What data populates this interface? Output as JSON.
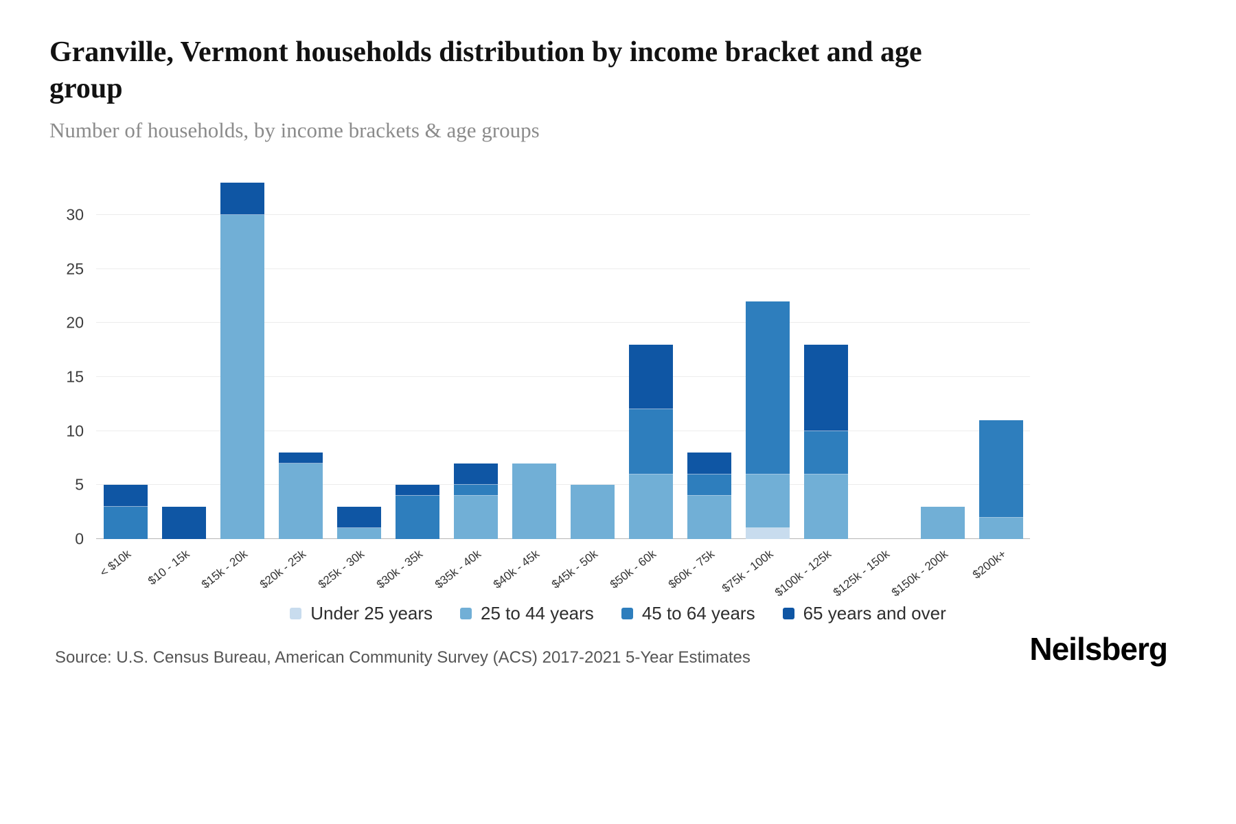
{
  "header": {
    "title": "Granville, Vermont households distribution by income bracket and age group",
    "subtitle": "Number of households, by income brackets & age groups"
  },
  "footer": {
    "source": "Source: U.S. Census Bureau, American Community Survey (ACS) 2017-2021 5-Year Estimates",
    "brand": "Neilsberg"
  },
  "chart_data": {
    "type": "bar",
    "stacked": true,
    "title": "Granville, Vermont households distribution by income bracket and age group",
    "subtitle": "Number of households, by income brackets & age groups",
    "xlabel": "",
    "ylabel": "",
    "categories": [
      "< $10k",
      "$10 - 15k",
      "$15k - 20k",
      "$20k - 25k",
      "$25k - 30k",
      "$30k - 35k",
      "$35k - 40k",
      "$40k - 45k",
      "$45k - 50k",
      "$50k - 60k",
      "$60k - 75k",
      "$75k - 100k",
      "$100k - 125k",
      "$125k - 150k",
      "$150k - 200k",
      "$200k+"
    ],
    "series": [
      {
        "name": "Under 25 years",
        "color": "#c8dcee",
        "values": [
          0,
          0,
          0,
          0,
          0,
          0,
          0,
          0,
          0,
          0,
          0,
          1,
          0,
          0,
          0,
          0
        ]
      },
      {
        "name": "25 to 44 years",
        "color": "#71afd6",
        "values": [
          0,
          0,
          30,
          7,
          1,
          0,
          4,
          7,
          5,
          6,
          4,
          5,
          6,
          0,
          3,
          2
        ]
      },
      {
        "name": "45 to 64 years",
        "color": "#2e7ebd",
        "values": [
          3,
          0,
          0,
          0,
          0,
          4,
          1,
          0,
          0,
          6,
          2,
          16,
          4,
          0,
          0,
          9
        ]
      },
      {
        "name": "65 years and over",
        "color": "#0f56a4",
        "values": [
          2,
          3,
          3,
          1,
          2,
          1,
          2,
          0,
          0,
          6,
          2,
          0,
          8,
          0,
          0,
          0
        ]
      }
    ],
    "totals": [
      5,
      3,
      33,
      8,
      3,
      5,
      7,
      7,
      5,
      18,
      8,
      22,
      18,
      0,
      3,
      11
    ],
    "yticks": [
      0,
      5,
      10,
      15,
      20,
      25,
      30
    ],
    "ylim": [
      0,
      33.5
    ],
    "grid": true,
    "legend_position": "bottom"
  }
}
